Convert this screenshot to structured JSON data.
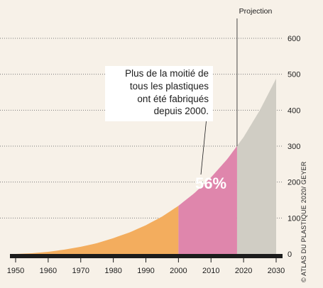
{
  "chart_data": {
    "type": "area",
    "x": [
      1950,
      1955,
      1960,
      1965,
      1970,
      1975,
      1980,
      1985,
      1990,
      1995,
      2000,
      2005,
      2010,
      2015,
      2020,
      2025,
      2030
    ],
    "y": [
      0,
      2,
      6,
      12,
      20,
      30,
      44,
      60,
      80,
      104,
      134,
      170,
      213,
      264,
      325,
      400,
      488
    ],
    "xlim": [
      1950,
      2030
    ],
    "ylim": [
      0,
      600
    ],
    "x_ticks": [
      "1950",
      "1960",
      "1970",
      "1980",
      "1990",
      "2000",
      "2010",
      "2020",
      "2030"
    ],
    "y_ticks": [
      "0",
      "100",
      "200",
      "300",
      "400",
      "500",
      "600"
    ],
    "segments": [
      {
        "from": 1950,
        "to": 2000,
        "color": "#f3ad5e"
      },
      {
        "from": 2000,
        "to": 2018,
        "color": "#df86ac"
      },
      {
        "from": 2018,
        "to": 2030,
        "color": "#d0cdc4"
      }
    ],
    "grid": true,
    "annotation": {
      "label": "56%",
      "lines": [
        "Plus de la moitié de",
        "tous les plastiques",
        "ont été fabriqués",
        "depuis 2000."
      ]
    },
    "projection_label": "Projection",
    "source": "© ATLAS DU PLASTIQUE 2020/ GEYER"
  }
}
